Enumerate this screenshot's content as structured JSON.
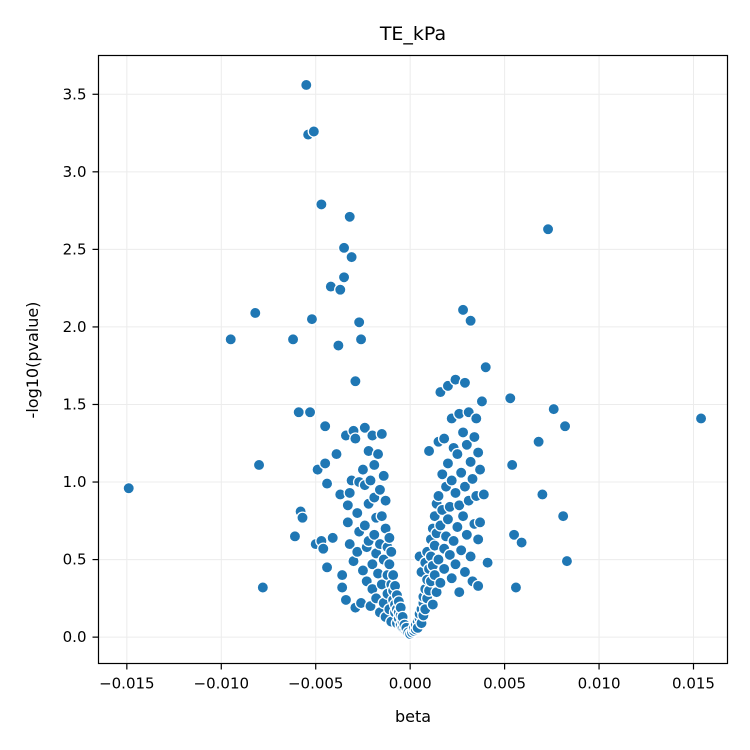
{
  "chart_data": {
    "type": "scatter",
    "title": "TE_kPa",
    "xlabel": "beta",
    "ylabel": "-log10(pvalue)",
    "xlim": [
      -0.0165,
      0.0168
    ],
    "ylim": [
      -0.17,
      3.75
    ],
    "xticks": [
      -0.015,
      -0.01,
      -0.005,
      0.0,
      0.005,
      0.01,
      0.015
    ],
    "xtick_labels": [
      "−0.015",
      "−0.010",
      "−0.005",
      "0.000",
      "0.005",
      "0.010",
      "0.015"
    ],
    "yticks": [
      0.0,
      0.5,
      1.0,
      1.5,
      2.0,
      2.5,
      3.0,
      3.5
    ],
    "ytick_labels": [
      "0.0",
      "0.5",
      "1.0",
      "1.5",
      "2.0",
      "2.5",
      "3.0",
      "3.5"
    ],
    "grid": true,
    "marker_color": "#1f77b4",
    "marker_edge_color": "#ffffff",
    "points": [
      [
        -0.0149,
        0.96
      ],
      [
        -0.0095,
        1.92
      ],
      [
        -0.0082,
        2.09
      ],
      [
        -0.008,
        1.11
      ],
      [
        -0.0078,
        0.32
      ],
      [
        -0.0062,
        1.92
      ],
      [
        -0.0061,
        0.65
      ],
      [
        -0.0059,
        1.45
      ],
      [
        -0.0058,
        0.81
      ],
      [
        -0.0057,
        0.77
      ],
      [
        -0.0055,
        3.56
      ],
      [
        -0.0054,
        3.24
      ],
      [
        -0.0053,
        1.45
      ],
      [
        -0.0052,
        2.05
      ],
      [
        -0.0051,
        3.26
      ],
      [
        -0.005,
        0.6
      ],
      [
        -0.0049,
        1.08
      ],
      [
        -0.0047,
        2.79
      ],
      [
        -0.0047,
        0.62
      ],
      [
        -0.0046,
        0.57
      ],
      [
        -0.0045,
        1.36
      ],
      [
        -0.0045,
        1.12
      ],
      [
        -0.0044,
        0.45
      ],
      [
        -0.0044,
        0.99
      ],
      [
        -0.0042,
        2.26
      ],
      [
        -0.0041,
        0.64
      ],
      [
        -0.0039,
        1.18
      ],
      [
        -0.0038,
        1.88
      ],
      [
        -0.0037,
        2.24
      ],
      [
        -0.0037,
        0.92
      ],
      [
        -0.0036,
        0.4
      ],
      [
        -0.0036,
        0.32
      ],
      [
        -0.0035,
        2.32
      ],
      [
        -0.0035,
        2.51
      ],
      [
        -0.0034,
        1.3
      ],
      [
        -0.0034,
        0.24
      ],
      [
        -0.0033,
        0.85
      ],
      [
        -0.0033,
        0.74
      ],
      [
        -0.0032,
        2.71
      ],
      [
        -0.0032,
        0.93
      ],
      [
        -0.0032,
        0.6
      ],
      [
        -0.0031,
        2.45
      ],
      [
        -0.0031,
        1.01
      ],
      [
        -0.003,
        1.33
      ],
      [
        -0.003,
        0.49
      ],
      [
        -0.0029,
        1.65
      ],
      [
        -0.0029,
        1.28
      ],
      [
        -0.0029,
        0.19
      ],
      [
        -0.0028,
        0.55
      ],
      [
        -0.0028,
        0.8
      ],
      [
        -0.0027,
        2.03
      ],
      [
        -0.0027,
        1.0
      ],
      [
        -0.0027,
        0.68
      ],
      [
        -0.0026,
        1.92
      ],
      [
        -0.0026,
        0.22
      ],
      [
        -0.0025,
        0.43
      ],
      [
        -0.0025,
        1.08
      ],
      [
        -0.0024,
        0.72
      ],
      [
        -0.0024,
        1.35
      ],
      [
        -0.0024,
        0.98
      ],
      [
        -0.0023,
        0.58
      ],
      [
        -0.0023,
        0.36
      ],
      [
        -0.0022,
        1.2
      ],
      [
        -0.0022,
        0.86
      ],
      [
        -0.0022,
        0.62
      ],
      [
        -0.0021,
        1.01
      ],
      [
        -0.0021,
        0.2
      ],
      [
        -0.002,
        0.47
      ],
      [
        -0.002,
        1.3
      ],
      [
        -0.002,
        0.31
      ],
      [
        -0.0019,
        0.9
      ],
      [
        -0.0019,
        0.66
      ],
      [
        -0.0019,
        1.11
      ],
      [
        -0.0018,
        0.25
      ],
      [
        -0.0018,
        0.54
      ],
      [
        -0.0018,
        0.77
      ],
      [
        -0.0017,
        1.18
      ],
      [
        -0.0017,
        0.41
      ],
      [
        -0.0016,
        0.95
      ],
      [
        -0.0016,
        0.16
      ],
      [
        -0.0016,
        0.6
      ],
      [
        -0.0015,
        1.31
      ],
      [
        -0.0015,
        0.34
      ],
      [
        -0.0015,
        0.78
      ],
      [
        -0.0014,
        1.04
      ],
      [
        -0.0014,
        0.5
      ],
      [
        -0.0014,
        0.22
      ],
      [
        -0.0013,
        0.7
      ],
      [
        -0.0013,
        0.88
      ],
      [
        -0.0013,
        0.13
      ],
      [
        -0.0012,
        0.4
      ],
      [
        -0.0012,
        0.58
      ],
      [
        -0.0012,
        0.28
      ],
      [
        -0.0011,
        0.64
      ],
      [
        -0.0011,
        0.18
      ],
      [
        -0.0011,
        0.47
      ],
      [
        -0.001,
        0.34
      ],
      [
        -0.001,
        0.55
      ],
      [
        -0.001,
        0.1
      ],
      [
        -0.0009,
        0.24
      ],
      [
        -0.0009,
        0.4
      ],
      [
        -0.0009,
        0.3
      ],
      [
        -0.0008,
        0.16
      ],
      [
        -0.0008,
        0.33
      ],
      [
        -0.0008,
        0.21
      ],
      [
        -0.0007,
        0.27
      ],
      [
        -0.0007,
        0.09
      ],
      [
        -0.0007,
        0.18
      ],
      [
        -0.0006,
        0.23
      ],
      [
        -0.0006,
        0.12
      ],
      [
        -0.0006,
        0.16
      ],
      [
        -0.0005,
        0.08
      ],
      [
        -0.0005,
        0.14
      ],
      [
        -0.0005,
        0.19
      ],
      [
        -0.0004,
        0.06
      ],
      [
        -0.0004,
        0.1
      ],
      [
        -0.0004,
        0.13
      ],
      [
        -0.0003,
        0.05
      ],
      [
        -0.0003,
        0.08
      ],
      [
        -0.0002,
        0.04
      ],
      [
        -0.0002,
        0.06
      ],
      [
        -0.0001,
        0.03
      ],
      [
        0.0,
        0.02
      ],
      [
        0.0001,
        0.03
      ],
      [
        0.0002,
        0.04
      ],
      [
        0.0002,
        0.06
      ],
      [
        0.0003,
        0.05
      ],
      [
        0.0003,
        0.08
      ],
      [
        0.0004,
        0.1
      ],
      [
        0.0004,
        0.06
      ],
      [
        0.0005,
        0.12
      ],
      [
        0.0005,
        0.52
      ],
      [
        0.0005,
        0.15
      ],
      [
        0.0006,
        0.18
      ],
      [
        0.0006,
        0.09
      ],
      [
        0.0006,
        0.42
      ],
      [
        0.0007,
        0.22
      ],
      [
        0.0007,
        0.14
      ],
      [
        0.0007,
        0.26
      ],
      [
        0.0008,
        0.31
      ],
      [
        0.0008,
        0.18
      ],
      [
        0.0008,
        0.48
      ],
      [
        0.0009,
        0.37
      ],
      [
        0.0009,
        0.25
      ],
      [
        0.0009,
        0.55
      ],
      [
        0.001,
        0.44
      ],
      [
        0.001,
        1.2
      ],
      [
        0.001,
        0.3
      ],
      [
        0.0011,
        0.63
      ],
      [
        0.0011,
        0.36
      ],
      [
        0.0011,
        0.52
      ],
      [
        0.0012,
        0.7
      ],
      [
        0.0012,
        0.21
      ],
      [
        0.0012,
        0.46
      ],
      [
        0.0013,
        0.78
      ],
      [
        0.0013,
        0.4
      ],
      [
        0.0013,
        0.59
      ],
      [
        0.0014,
        0.86
      ],
      [
        0.0014,
        0.29
      ],
      [
        0.0014,
        0.67
      ],
      [
        0.0015,
        1.26
      ],
      [
        0.0015,
        0.91
      ],
      [
        0.0015,
        0.5
      ],
      [
        0.0016,
        1.58
      ],
      [
        0.0016,
        0.72
      ],
      [
        0.0016,
        0.35
      ],
      [
        0.0017,
        1.05
      ],
      [
        0.0017,
        0.82
      ],
      [
        0.0018,
        1.28
      ],
      [
        0.0018,
        0.57
      ],
      [
        0.0018,
        0.44
      ],
      [
        0.0019,
        0.97
      ],
      [
        0.0019,
        0.65
      ],
      [
        0.002,
        1.62
      ],
      [
        0.002,
        1.12
      ],
      [
        0.002,
        0.76
      ],
      [
        0.0021,
        0.53
      ],
      [
        0.0021,
        0.84
      ],
      [
        0.0022,
        1.41
      ],
      [
        0.0022,
        0.38
      ],
      [
        0.0022,
        1.01
      ],
      [
        0.0023,
        1.22
      ],
      [
        0.0023,
        0.62
      ],
      [
        0.0024,
        1.66
      ],
      [
        0.0024,
        0.93
      ],
      [
        0.0024,
        0.47
      ],
      [
        0.0025,
        1.18
      ],
      [
        0.0025,
        0.71
      ],
      [
        0.0026,
        1.44
      ],
      [
        0.0026,
        0.85
      ],
      [
        0.0026,
        0.29
      ],
      [
        0.0027,
        1.06
      ],
      [
        0.0027,
        0.56
      ],
      [
        0.0028,
        2.11
      ],
      [
        0.0028,
        1.32
      ],
      [
        0.0028,
        0.78
      ],
      [
        0.0029,
        1.64
      ],
      [
        0.0029,
        0.97
      ],
      [
        0.0029,
        0.42
      ],
      [
        0.003,
        1.24
      ],
      [
        0.003,
        0.66
      ],
      [
        0.0031,
        1.45
      ],
      [
        0.0031,
        0.88
      ],
      [
        0.0032,
        2.04
      ],
      [
        0.0032,
        1.13
      ],
      [
        0.0032,
        0.52
      ],
      [
        0.0033,
        1.02
      ],
      [
        0.0033,
        0.36
      ],
      [
        0.0034,
        1.29
      ],
      [
        0.0034,
        0.73
      ],
      [
        0.0035,
        1.41
      ],
      [
        0.0035,
        0.91
      ],
      [
        0.0036,
        1.19
      ],
      [
        0.0036,
        0.63
      ],
      [
        0.0036,
        0.33
      ],
      [
        0.0037,
        1.08
      ],
      [
        0.0037,
        0.74
      ],
      [
        0.0038,
        1.52
      ],
      [
        0.0039,
        0.92
      ],
      [
        0.004,
        1.74
      ],
      [
        0.0041,
        0.48
      ],
      [
        0.0053,
        1.54
      ],
      [
        0.0054,
        1.11
      ],
      [
        0.0055,
        0.66
      ],
      [
        0.0056,
        0.32
      ],
      [
        0.0059,
        0.61
      ],
      [
        0.0068,
        1.26
      ],
      [
        0.007,
        0.92
      ],
      [
        0.0073,
        2.63
      ],
      [
        0.0076,
        1.47
      ],
      [
        0.0081,
        0.78
      ],
      [
        0.0082,
        1.36
      ],
      [
        0.0083,
        0.49
      ],
      [
        0.0154,
        1.41
      ]
    ]
  }
}
